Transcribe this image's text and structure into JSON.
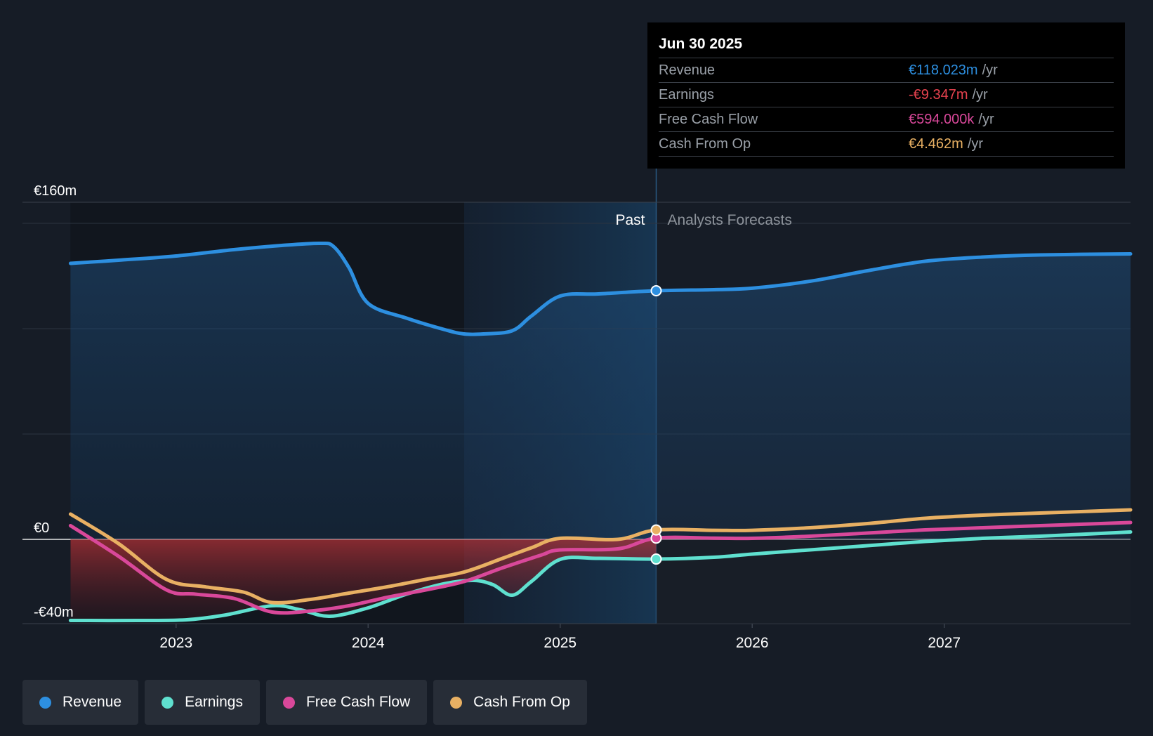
{
  "chart_data": {
    "type": "line",
    "y_unit": "€m",
    "ylim": [
      -40,
      160
    ],
    "y_tick_labels": [
      {
        "value": 160,
        "label": "€160m"
      },
      {
        "value": 0,
        "label": "€0"
      },
      {
        "value": -40,
        "label": "-€40m"
      }
    ],
    "y_gridlines": [
      150,
      100,
      50
    ],
    "x_range": [
      2022.2,
      2027.97
    ],
    "x_ticks": [
      {
        "value": 2023.0,
        "label": "2023"
      },
      {
        "value": 2024.0,
        "label": "2024"
      },
      {
        "value": 2025.0,
        "label": "2025"
      },
      {
        "value": 2026.0,
        "label": "2026"
      },
      {
        "value": 2027.0,
        "label": "2027"
      }
    ],
    "past_label": "Past",
    "forecast_label": "Analysts Forecasts",
    "past_band_start": 2024.5,
    "divider_x": 2025.5,
    "series": [
      {
        "name": "Revenue",
        "color": "#2d8fe0",
        "points": [
          [
            2022.45,
            131
          ],
          [
            2022.7,
            132.5
          ],
          [
            2023.0,
            134.5
          ],
          [
            2023.3,
            137.5
          ],
          [
            2023.55,
            139.5
          ],
          [
            2023.75,
            140.5
          ],
          [
            2023.82,
            139
          ],
          [
            2023.9,
            129
          ],
          [
            2024.0,
            112
          ],
          [
            2024.2,
            105
          ],
          [
            2024.4,
            99.5
          ],
          [
            2024.5,
            97.5
          ],
          [
            2024.6,
            97.5
          ],
          [
            2024.75,
            99
          ],
          [
            2024.85,
            106
          ],
          [
            2025.0,
            115.5
          ],
          [
            2025.2,
            116.5
          ],
          [
            2025.5,
            118.0
          ],
          [
            2025.8,
            118.5
          ],
          [
            2026.0,
            119.2
          ],
          [
            2026.3,
            122.5
          ],
          [
            2026.6,
            127.5
          ],
          [
            2026.9,
            132.0
          ],
          [
            2027.2,
            134.0
          ],
          [
            2027.5,
            135.0
          ],
          [
            2027.97,
            135.5
          ]
        ]
      },
      {
        "name": "Earnings",
        "color": "#5fe0cf",
        "points": [
          [
            2022.45,
            -38.5
          ],
          [
            2022.8,
            -38.5
          ],
          [
            2023.05,
            -38.2
          ],
          [
            2023.25,
            -36
          ],
          [
            2023.5,
            -31.5
          ],
          [
            2023.65,
            -33.5
          ],
          [
            2023.8,
            -36.5
          ],
          [
            2024.0,
            -32.5
          ],
          [
            2024.2,
            -26
          ],
          [
            2024.4,
            -21
          ],
          [
            2024.55,
            -19.5
          ],
          [
            2024.65,
            -21.5
          ],
          [
            2024.75,
            -26.5
          ],
          [
            2024.85,
            -20
          ],
          [
            2025.0,
            -9.5
          ],
          [
            2025.2,
            -9.0
          ],
          [
            2025.5,
            -9.35
          ],
          [
            2025.8,
            -8.5
          ],
          [
            2026.0,
            -7.0
          ],
          [
            2026.3,
            -5.0
          ],
          [
            2026.6,
            -3.0
          ],
          [
            2026.9,
            -1.0
          ],
          [
            2027.2,
            0.5
          ],
          [
            2027.5,
            1.5
          ],
          [
            2027.97,
            3.5
          ]
        ]
      },
      {
        "name": "Free Cash Flow",
        "color": "#d9489a",
        "points": [
          [
            2022.45,
            6.5
          ],
          [
            2022.7,
            -8
          ],
          [
            2022.95,
            -24
          ],
          [
            2023.1,
            -26
          ],
          [
            2023.3,
            -28
          ],
          [
            2023.5,
            -34.5
          ],
          [
            2023.7,
            -34
          ],
          [
            2023.9,
            -31.5
          ],
          [
            2024.1,
            -27.5
          ],
          [
            2024.3,
            -24
          ],
          [
            2024.5,
            -20
          ],
          [
            2024.7,
            -13.5
          ],
          [
            2024.9,
            -7.5
          ],
          [
            2025.0,
            -5.0
          ],
          [
            2025.3,
            -4.5
          ],
          [
            2025.5,
            0.594
          ],
          [
            2025.8,
            0.6
          ],
          [
            2026.0,
            0.5
          ],
          [
            2026.3,
            1.5
          ],
          [
            2026.6,
            3.0
          ],
          [
            2026.9,
            4.5
          ],
          [
            2027.2,
            5.5
          ],
          [
            2027.5,
            6.5
          ],
          [
            2027.97,
            8
          ]
        ]
      },
      {
        "name": "Cash From Op",
        "color": "#e8b063",
        "points": [
          [
            2022.45,
            12
          ],
          [
            2022.7,
            -2
          ],
          [
            2022.95,
            -19
          ],
          [
            2023.15,
            -22.5
          ],
          [
            2023.35,
            -25
          ],
          [
            2023.5,
            -30
          ],
          [
            2023.7,
            -28.5
          ],
          [
            2023.9,
            -25.5
          ],
          [
            2024.1,
            -22.5
          ],
          [
            2024.3,
            -19
          ],
          [
            2024.5,
            -15.5
          ],
          [
            2024.7,
            -9
          ],
          [
            2024.85,
            -4
          ],
          [
            2025.0,
            0.5
          ],
          [
            2025.3,
            0
          ],
          [
            2025.5,
            4.462
          ],
          [
            2025.8,
            4.3
          ],
          [
            2026.0,
            4.3
          ],
          [
            2026.3,
            5.5
          ],
          [
            2026.6,
            7.5
          ],
          [
            2026.9,
            10.0
          ],
          [
            2027.2,
            11.5
          ],
          [
            2027.5,
            12.5
          ],
          [
            2027.97,
            14
          ]
        ]
      }
    ]
  },
  "tooltip": {
    "date": "Jun 30 2025",
    "rows": [
      {
        "label": "Revenue",
        "value": "€118.023m",
        "unit": "/yr",
        "color": "#2d8fe0"
      },
      {
        "label": "Earnings",
        "value": "-€9.347m",
        "unit": "/yr",
        "color": "#e8424f"
      },
      {
        "label": "Free Cash Flow",
        "value": "€594.000k",
        "unit": "/yr",
        "color": "#d9489a"
      },
      {
        "label": "Cash From Op",
        "value": "€4.462m",
        "unit": "/yr",
        "color": "#e8b063"
      }
    ]
  },
  "legend": [
    {
      "label": "Revenue",
      "color": "#2d8fe0"
    },
    {
      "label": "Earnings",
      "color": "#5fe0cf"
    },
    {
      "label": "Free Cash Flow",
      "color": "#d9489a"
    },
    {
      "label": "Cash From Op",
      "color": "#e8b063"
    }
  ]
}
